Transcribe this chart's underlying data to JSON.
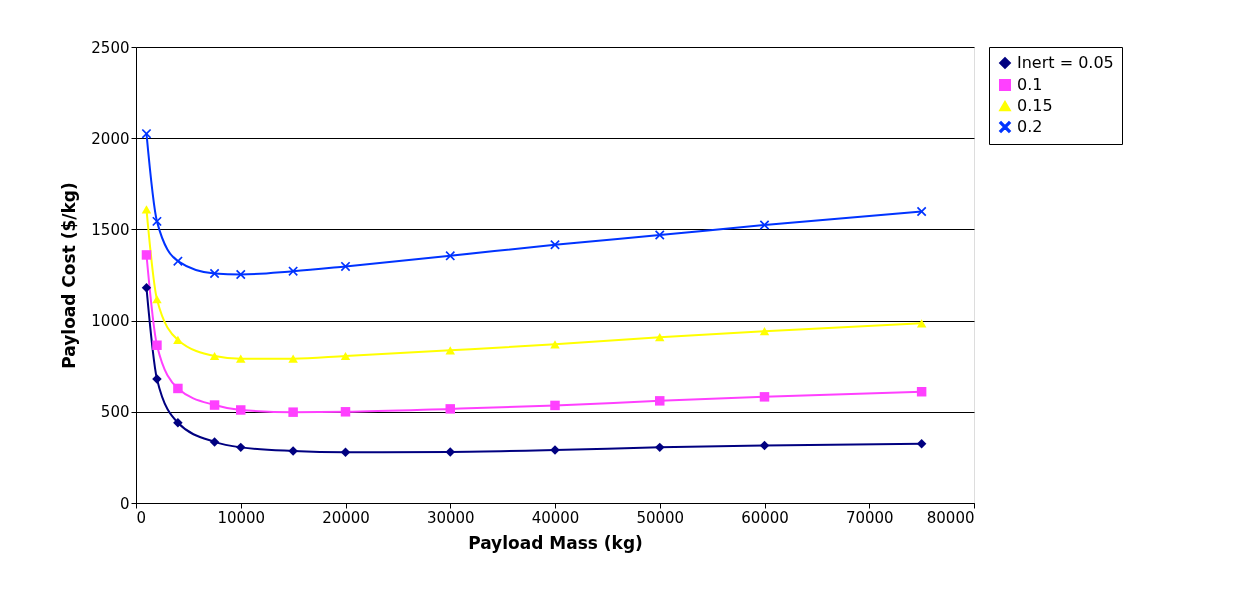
{
  "chart_data": {
    "type": "line",
    "xlabel": "Payload Mass (kg)",
    "ylabel": "Payload Cost ($/kg)",
    "x": [
      1000,
      2000,
      4000,
      7500,
      10000,
      15000,
      20000,
      30000,
      40000,
      50000,
      60000,
      75000
    ],
    "xlim": [
      0,
      80000
    ],
    "xticks": [
      0,
      10000,
      20000,
      30000,
      40000,
      50000,
      60000,
      70000,
      80000
    ],
    "ylim": [
      0,
      2500
    ],
    "yticks": [
      0,
      500,
      1000,
      1500,
      2000,
      2500
    ],
    "grid": "y",
    "legend": "right",
    "series": [
      {
        "name": "Inert = 0.05",
        "color": "#000080",
        "marker": "diamond",
        "values": [
          1180,
          680,
          440,
          335,
          305,
          285,
          278,
          280,
          290,
          305,
          315,
          325
        ]
      },
      {
        "name": "0.1",
        "color": "#ff40ff",
        "marker": "square",
        "values": [
          1360,
          865,
          628,
          537,
          510,
          498,
          500,
          516,
          535,
          560,
          582,
          610
        ]
      },
      {
        "name": "0.15",
        "color": "#ffff00",
        "marker": "triangle",
        "values": [
          1610,
          1117,
          894,
          806,
          791,
          791,
          806,
          837,
          870,
          909,
          942,
          985
        ]
      },
      {
        "name": "0.2",
        "color": "#0033ff",
        "marker": "cross",
        "values": [
          2025,
          1544,
          1326,
          1258,
          1253,
          1271,
          1297,
          1355,
          1416,
          1469,
          1524,
          1598
        ]
      }
    ]
  }
}
